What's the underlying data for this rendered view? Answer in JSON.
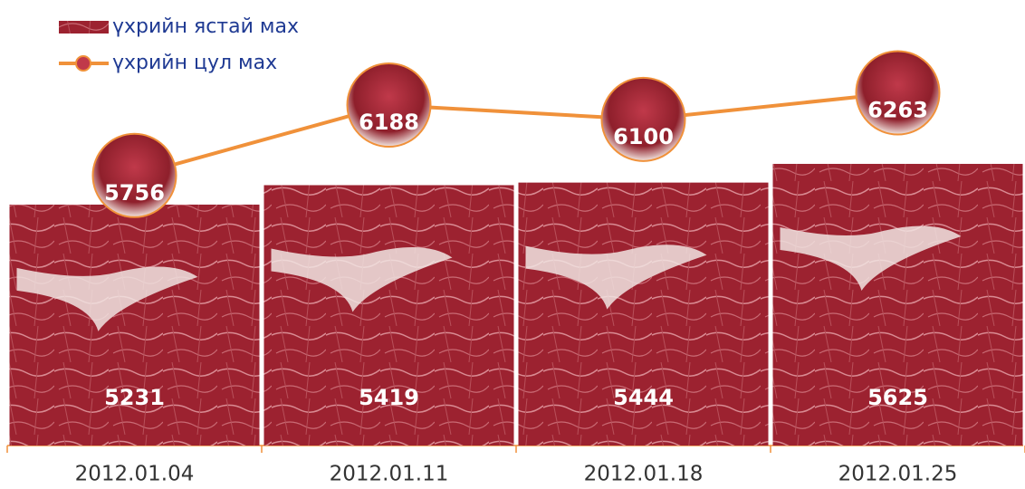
{
  "chart_data": {
    "type": "bar",
    "categories": [
      "2012.01.04",
      "2012.01.11",
      "2012.01.18",
      "2012.01.25"
    ],
    "series": [
      {
        "name": "үхрийн ястай мах",
        "color": "#8b1a22",
        "values": [
          5231,
          5419,
          5444,
          5625
        ]
      },
      {
        "name": "үхрийн цул мах",
        "color": "#f0913a",
        "type": "line",
        "axis": "y2",
        "values": [
          5756,
          6188,
          6100,
          6263
        ]
      }
    ],
    "ylim": [
      2900,
      6860
    ],
    "y2lim": [
      4100,
      6610
    ]
  }
}
